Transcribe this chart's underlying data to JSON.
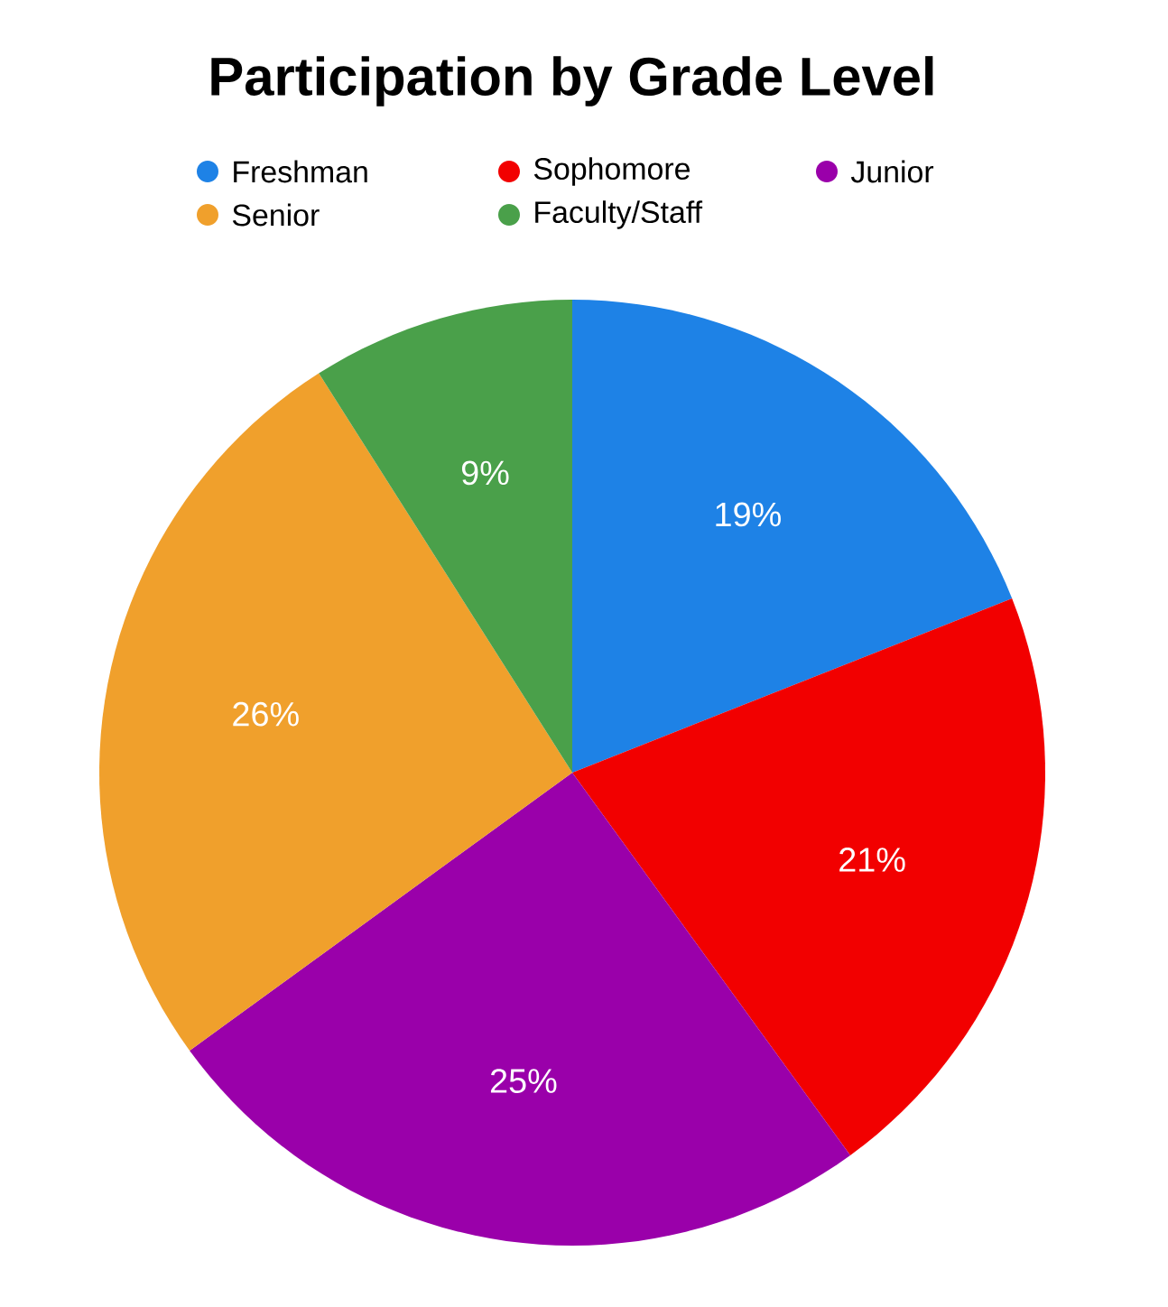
{
  "chart_data": {
    "type": "pie",
    "title": "Participation by Grade Level",
    "categories": [
      "Freshman",
      "Sophomore",
      "Junior",
      "Senior",
      "Faculty/Staff"
    ],
    "values": [
      19,
      21,
      25,
      26,
      9
    ],
    "colors": [
      "#1e82e6",
      "#f20000",
      "#9a00aa",
      "#f0a02c",
      "#4aa04a"
    ],
    "value_labels": [
      "19%",
      "21%",
      "25%",
      "26%",
      "9%"
    ],
    "legend": "top"
  }
}
